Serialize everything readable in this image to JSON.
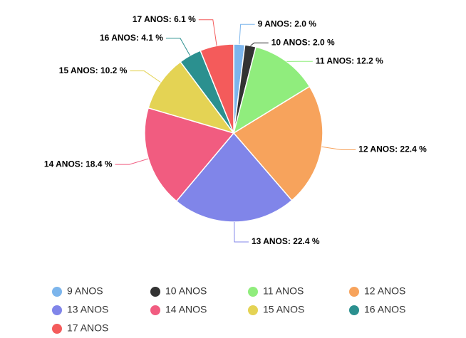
{
  "chart_data": {
    "type": "pie",
    "categories": [
      "9 ANOS",
      "10 ANOS",
      "11 ANOS",
      "12 ANOS",
      "13 ANOS",
      "14 ANOS",
      "15 ANOS",
      "16 ANOS",
      "17 ANOS"
    ],
    "values": [
      2.0,
      2.0,
      12.2,
      22.4,
      22.4,
      18.4,
      10.2,
      4.1,
      6.1
    ],
    "value_labels": [
      "9 ANOS: 2.0 %",
      "10 ANOS: 2.0 %",
      "11 ANOS: 12.2 %",
      "12 ANOS: 22.4 %",
      "13 ANOS: 22.4 %",
      "14 ANOS: 18.4 %",
      "15 ANOS: 10.2 %",
      "16 ANOS: 4.1 %",
      "17 ANOS: 6.1 %"
    ],
    "colors": [
      "#7cb5ec",
      "#333333",
      "#90ed7d",
      "#f7a35c",
      "#8085e9",
      "#f15c80",
      "#e4d354",
      "#2b908f",
      "#f45b5b"
    ]
  }
}
